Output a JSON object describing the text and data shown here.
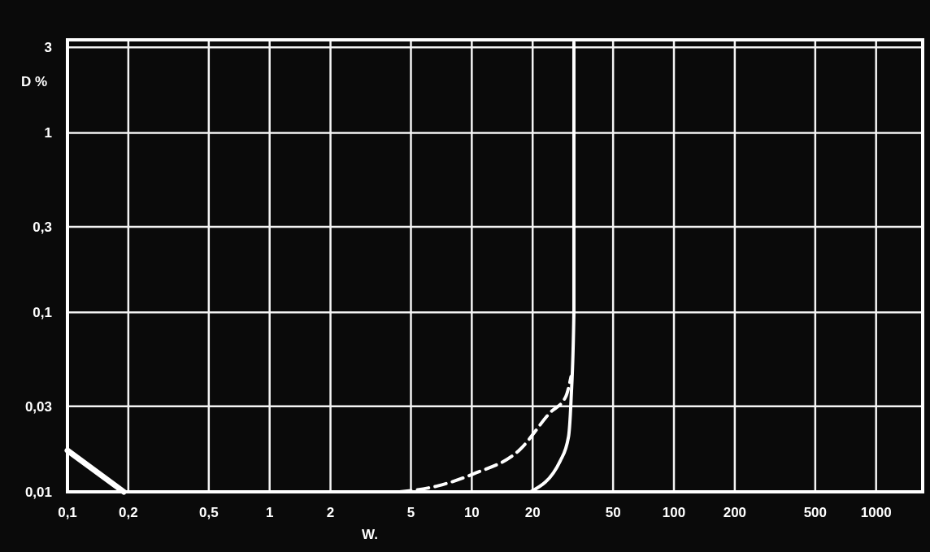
{
  "chart_data": {
    "type": "line",
    "xlabel": "W.",
    "ylabel": "D %",
    "log": "xy",
    "grid": true,
    "marker": "none",
    "xlim": [
      0.1,
      1700
    ],
    "ylim": [
      0.01,
      3.3
    ],
    "xticks": [
      {
        "value": 0.1,
        "label": "0,1"
      },
      {
        "value": 0.2,
        "label": "0,2"
      },
      {
        "value": 0.5,
        "label": "0,5"
      },
      1,
      2,
      5,
      10,
      20,
      50,
      100,
      200,
      500,
      1000
    ],
    "yticks": [
      {
        "value": 0.01,
        "label": "0,01"
      },
      {
        "value": 0.03,
        "label": "0,03"
      },
      {
        "value": 0.1,
        "label": "0,1"
      },
      {
        "value": 0.3,
        "label": "0,3"
      },
      1,
      3
    ],
    "series": [
      {
        "color": "#ffffff",
        "line_style": "solid",
        "x": [
          0.1,
          0.19
        ],
        "values": [
          0.017,
          0.01
        ]
      },
      {
        "color": "#ffffff",
        "line_style": "dashed",
        "x": [
          4.4,
          6.8,
          10.2,
          17.3,
          24.3,
          29.2,
          31
        ],
        "values": [
          0.01,
          0.0108,
          0.0126,
          0.0172,
          0.0275,
          0.034,
          0.044
        ]
      },
      {
        "color": "#ffffff",
        "line_style": "solid",
        "x": [
          19.5,
          27.4,
          30.1,
          31,
          32,
          32
        ],
        "values": [
          0.01,
          0.0149,
          0.0203,
          0.033,
          0.1,
          3.2
        ]
      }
    ]
  }
}
